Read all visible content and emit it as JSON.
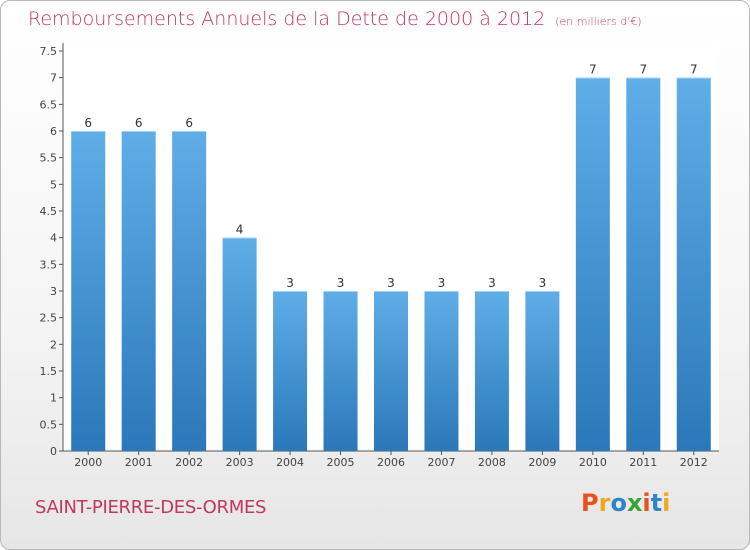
{
  "header": {
    "title": "Remboursements Annuels de la Dette de 2000 à 2012",
    "unit_note": "(en milliers d'€)"
  },
  "footer": {
    "commune": "SAINT-PIERRE-DES-ORMES",
    "brand": "Proxiti",
    "brand_colors": [
      "#e8501e",
      "#f0a81c",
      "#2e84c8",
      "#3aa335",
      "#e8501e",
      "#2e84c8",
      "#f0a81c"
    ]
  },
  "colors": {
    "bar_light": "#5faee8",
    "bar_dark": "#2a78b9",
    "title": "#c1385c"
  },
  "chart_data": {
    "type": "bar",
    "title": "Remboursements Annuels de la Dette de 2000 à 2012",
    "xlabel": "",
    "ylabel": "",
    "categories": [
      "2000",
      "2001",
      "2002",
      "2003",
      "2004",
      "2005",
      "2006",
      "2007",
      "2008",
      "2009",
      "2010",
      "2011",
      "2012"
    ],
    "values": [
      6,
      6,
      6,
      4,
      3,
      3,
      3,
      3,
      3,
      3,
      7,
      7,
      7
    ],
    "data_labels": [
      "6",
      "6",
      "6",
      "4",
      "3",
      "3",
      "3",
      "3",
      "3",
      "3",
      "7",
      "7",
      "7"
    ],
    "y_ticks": [
      "0",
      "0.5",
      "1",
      "1.5",
      "2",
      "2.5",
      "3",
      "3.5",
      "4",
      "4.5",
      "5",
      "5.5",
      "6",
      "6.5",
      "7",
      "7.5"
    ],
    "ylim": [
      0,
      7.5
    ],
    "grid": false,
    "legend": "none"
  }
}
